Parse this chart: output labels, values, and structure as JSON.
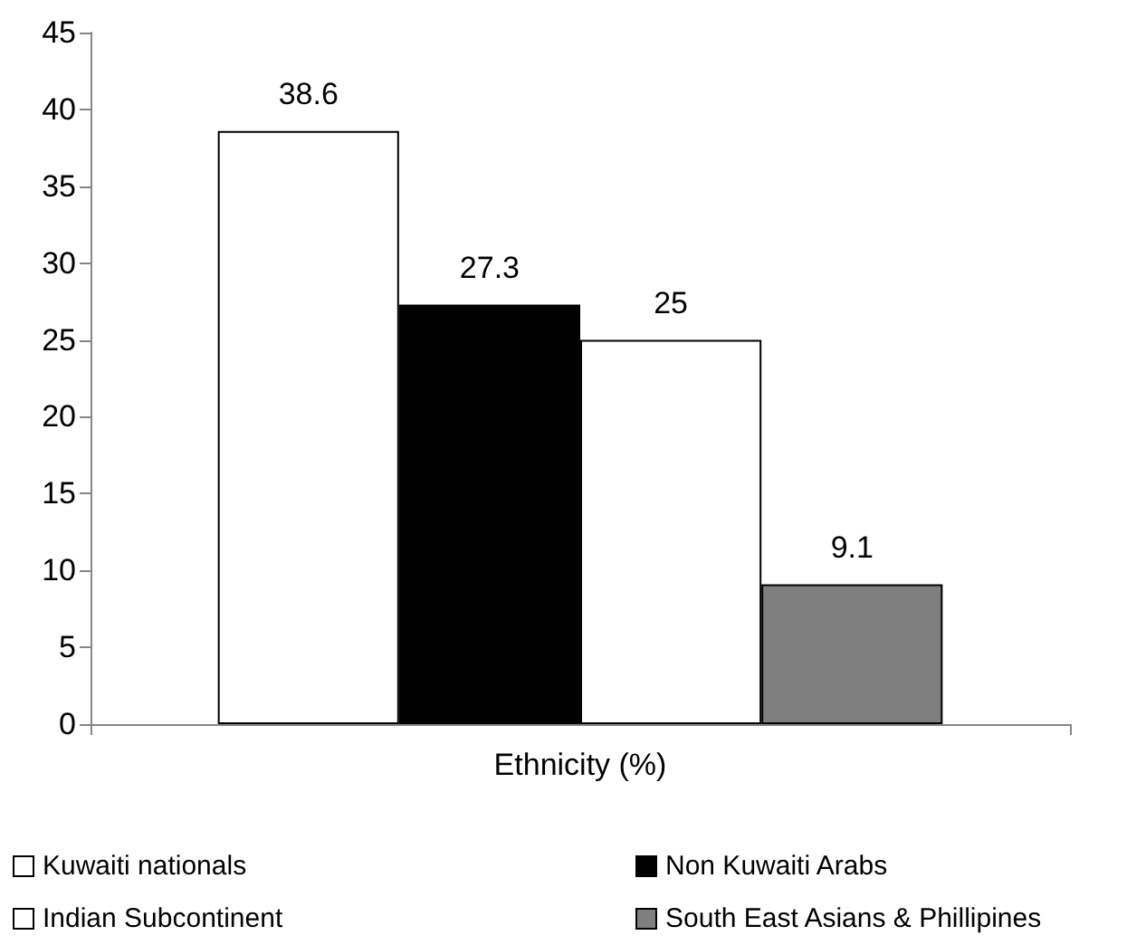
{
  "chart_data": {
    "type": "bar",
    "categories": [
      "Ethnicity (%)"
    ],
    "series": [
      {
        "name": "Kuwaiti nationals",
        "color": "#ffffff",
        "values": [
          38.6
        ]
      },
      {
        "name": "Non Kuwaiti Arabs",
        "color": "#000000",
        "values": [
          27.3
        ]
      },
      {
        "name": "Indian Subcontinent",
        "color": "#ffffff",
        "values": [
          25
        ]
      },
      {
        "name": "South East Asians & Phillipines",
        "color": "#7f7f7f",
        "values": [
          9.1
        ]
      }
    ],
    "ylim": [
      0,
      45
    ],
    "yticks": [
      0,
      5,
      10,
      15,
      20,
      25,
      30,
      35,
      40,
      45
    ],
    "grid": false,
    "legend": "bottom",
    "data_labels": true
  }
}
